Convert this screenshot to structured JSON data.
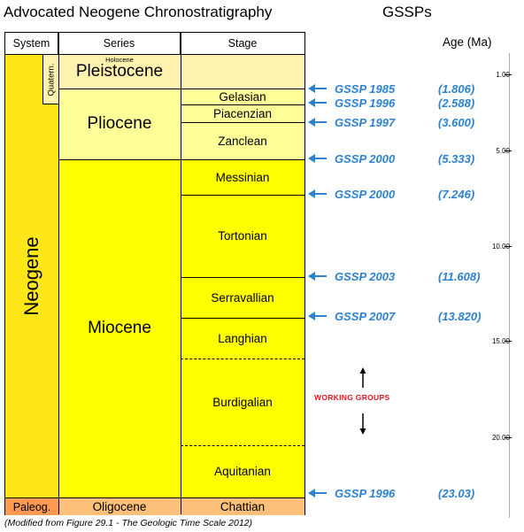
{
  "title": "Advocated Neogene Chronostratigraphy",
  "gssps_header": "GSSPs",
  "columns": {
    "system": "System",
    "series": "Series",
    "stage": "Stage",
    "age": "Age (Ma)"
  },
  "systems": {
    "neogene": "Neogene",
    "quatern": "Quatern.",
    "paleog": "Paleog."
  },
  "series": {
    "holocene": "Holocene",
    "pleistocene": "Pleistocene",
    "pliocene": "Pliocene",
    "miocene": "Miocene",
    "oligocene": "Oligocene"
  },
  "stages": {
    "gelasian": "Gelasian",
    "piacenzian": "Piacenzian",
    "zanclean": "Zanclean",
    "messinian": "Messinian",
    "tortonian": "Tortonian",
    "serravallian": "Serravallian",
    "langhian": "Langhian",
    "burdigalian": "Burdigalian",
    "aquitanian": "Aquitanian",
    "chattian": "Chattian"
  },
  "scale_ticks": [
    "1.00",
    "5.00",
    "10.00",
    "15.00",
    "20.00"
  ],
  "gssps": [
    {
      "name": "GSSP 1985",
      "age": "(1.806)"
    },
    {
      "name": "GSSP 1996",
      "age": "(2.588)"
    },
    {
      "name": "GSSP 1997",
      "age": "(3.600)"
    },
    {
      "name": "GSSP 2000",
      "age": "(5.333)"
    },
    {
      "name": "GSSP 2000",
      "age": "(7.246)"
    },
    {
      "name": "GSSP 2003",
      "age": "(11.608)"
    },
    {
      "name": "GSSP 2007",
      "age": "(13.820)"
    },
    {
      "name": "GSSP 1996",
      "age": "(23.03)"
    }
  ],
  "working_groups": "WORKING GROUPS",
  "footnote": "(Modified from Figure 29.1 - The Geologic Time Scale 2012)",
  "colors": {
    "neogene": "#ffe619",
    "quaternary": "#fff2ae",
    "pliocene": "#ffff99",
    "miocene": "#ffff00",
    "paleogene": "#fd9a52",
    "oligocene": "#fdc07a",
    "gssp_text": "#2d82d0",
    "working_groups": "#e8141e"
  }
}
